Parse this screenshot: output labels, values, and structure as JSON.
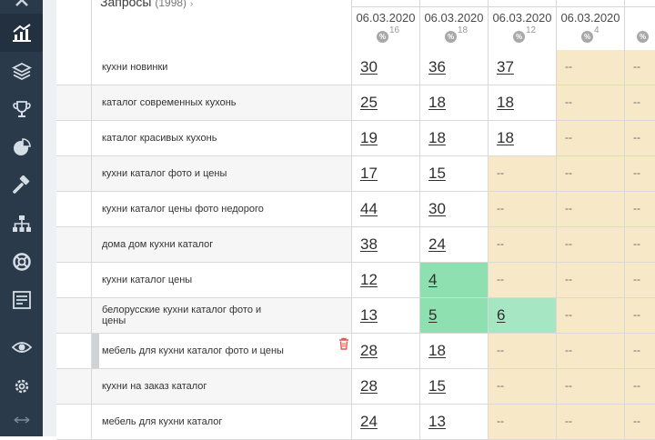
{
  "sidebar": {
    "icons": [
      "chart-up-icon",
      "layers-icon",
      "trophy-icon",
      "pie-chart-icon",
      "hammer-icon",
      "sitemap-icon",
      "lifebuoy-icon",
      "checklist-icon",
      "eye-icon",
      "gear-icon"
    ],
    "bottom_icon": "arrows-horizontal-icon",
    "active": "chart-up-icon"
  },
  "header": {
    "title": "Запросы",
    "count": "(1998)",
    "columns": [
      {
        "date": "06.03.2020",
        "count": "16",
        "badge": "%"
      },
      {
        "date": "06.03.2020",
        "count": "18",
        "badge": "%"
      },
      {
        "date": "06.03.2020",
        "count": "12",
        "badge": "%"
      },
      {
        "date": "06.03.2020",
        "count": "4",
        "badge": "%"
      },
      {
        "date": "",
        "count": "",
        "badge": "%"
      }
    ]
  },
  "rows": [
    {
      "query": "кухни новинки",
      "values": [
        "30",
        "36",
        "37",
        "--",
        "--"
      ]
    },
    {
      "query": "каталог современных кухонь",
      "values": [
        "25",
        "18",
        "18",
        "--",
        "--"
      ]
    },
    {
      "query": "каталог красивых кухонь",
      "values": [
        "19",
        "18",
        "18",
        "--",
        "--"
      ]
    },
    {
      "query": "кухни каталог фото и цены",
      "values": [
        "17",
        "15",
        "--",
        "--",
        "--"
      ]
    },
    {
      "query": "кухни каталог цены фото недорого",
      "values": [
        "44",
        "30",
        "--",
        "--",
        "--"
      ]
    },
    {
      "query": "дома дом кухни каталог",
      "values": [
        "38",
        "24",
        "--",
        "--",
        "--"
      ]
    },
    {
      "query": "кухни каталог цены",
      "values": [
        "12",
        "4",
        "--",
        "--",
        "--"
      ]
    },
    {
      "query": "белорусские кухни каталог фото и цены",
      "values": [
        "13",
        "5",
        "6",
        "--",
        "--"
      ]
    },
    {
      "query": "мебель для кухни каталог фото и цены",
      "values": [
        "28",
        "18",
        "--",
        "--",
        "--"
      ]
    },
    {
      "query": "кухни на заказ каталог",
      "values": [
        "28",
        "15",
        "--",
        "--",
        "--"
      ]
    },
    {
      "query": "мебель для кухни каталог",
      "values": [
        "24",
        "13",
        "--",
        "--",
        "--"
      ]
    }
  ],
  "colors": {
    "sidebar": "#2b3a4a",
    "empty_cell": "#f7e8c8",
    "top_position": "#8fe0b0",
    "trash": "#e0584f"
  }
}
